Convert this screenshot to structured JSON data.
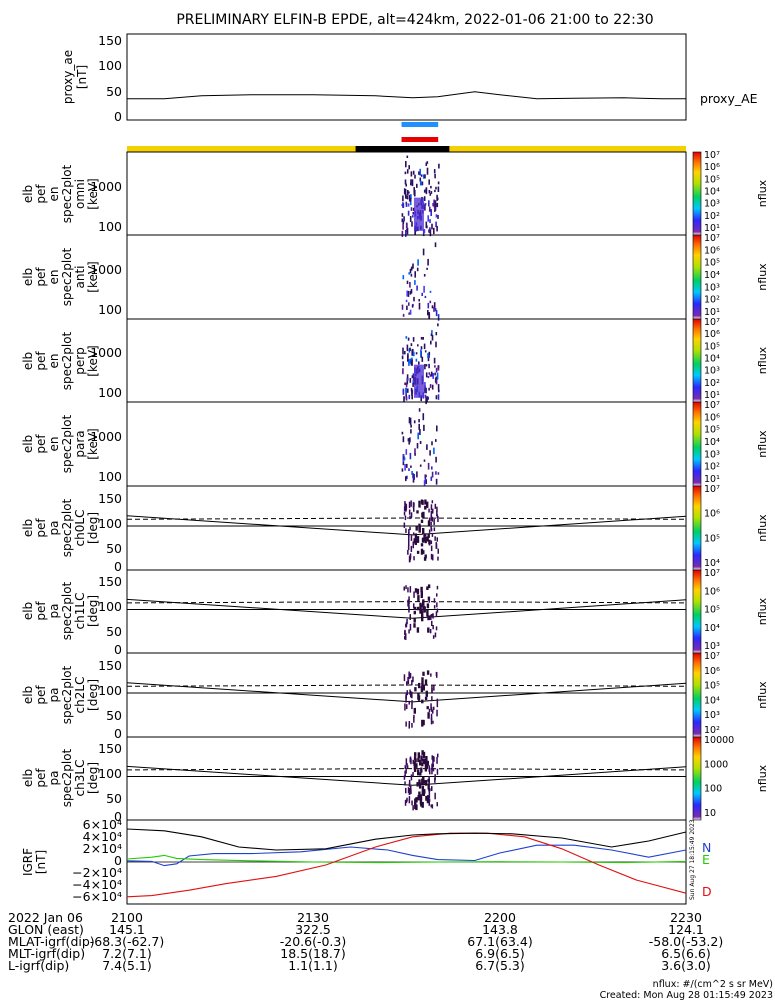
{
  "title": "PRELIMINARY ELFIN-B EPDE, alt=424km, 2022-01-06 21:00 to 22:30",
  "colors": {
    "orbit_bar_day": "#f4d000",
    "orbit_bar_night": "#000000",
    "science_zone_blue": "#1e90ff",
    "science_zone_red": "#e60000",
    "grf_north": "#1f3fd0",
    "grf_east": "#22cc00",
    "grf_down": "#e01010"
  },
  "panels": {
    "proxy_ae": {
      "ylabel": [
        "proxy_ae",
        "[nT]"
      ],
      "ytick_labels": [
        "150",
        "100",
        "50",
        "0"
      ],
      "yrange": [
        0,
        160
      ],
      "legend": "proxy_AE"
    },
    "energy": [
      {
        "ylabel": [
          "elb",
          "pef",
          "en",
          "spec2plot",
          "omni",
          "[keV]"
        ],
        "ytick_labels": [
          "1000",
          "100"
        ]
      },
      {
        "ylabel": [
          "elb",
          "pef",
          "en",
          "spec2plot",
          "anti",
          "[keV]"
        ],
        "ytick_labels": [
          "1000",
          "100"
        ]
      },
      {
        "ylabel": [
          "elb",
          "pef",
          "en",
          "spec2plot",
          "perp",
          "[keV]"
        ],
        "ytick_labels": [
          "1000",
          "100"
        ]
      },
      {
        "ylabel": [
          "elb",
          "pef",
          "en",
          "spec2plot",
          "para",
          "[keV]"
        ],
        "ytick_labels": [
          "1000",
          "100"
        ]
      }
    ],
    "pitch": [
      {
        "ylabel": [
          "elb",
          "pef",
          "pa",
          "spec2plot",
          "ch0LC",
          "[deg]"
        ],
        "ytick_labels": [
          "150",
          "100",
          "50",
          "0"
        ]
      },
      {
        "ylabel": [
          "elb",
          "pef",
          "pa",
          "spec2plot",
          "ch1LC",
          "[deg]"
        ],
        "ytick_labels": [
          "150",
          "100",
          "50",
          "0"
        ]
      },
      {
        "ylabel": [
          "elb",
          "pef",
          "pa",
          "spec2plot",
          "ch2LC",
          "[deg]"
        ],
        "ytick_labels": [
          "150",
          "100",
          "50",
          "0"
        ]
      },
      {
        "ylabel": [
          "elb",
          "pef",
          "pa",
          "spec2plot",
          "ch3LC",
          "[deg]"
        ],
        "ytick_labels": [
          "150",
          "100",
          "50",
          "0"
        ]
      }
    ],
    "grf": {
      "ylabel": [
        "IGRF",
        "[nT]"
      ],
      "ytick_labels": [
        "6×10⁴",
        "4×10⁴",
        "2×10⁴",
        "0",
        "−2×10⁴",
        "−4×10⁴",
        "−6×10⁴"
      ],
      "legend": [
        "N",
        "E",
        "D"
      ],
      "side_note": "Sun Aug 27 18:15:49 2023"
    }
  },
  "colorbars": [
    {
      "label": "nflux",
      "ticks": [
        "10⁷",
        "10⁶",
        "10⁵",
        "10⁴",
        "10³",
        "10²",
        "10¹"
      ]
    },
    {
      "label": "nflux",
      "ticks": [
        "10⁷",
        "10⁶",
        "10⁵",
        "10⁴",
        "10³",
        "10²",
        "10¹"
      ]
    },
    {
      "label": "nflux",
      "ticks": [
        "10⁷",
        "10⁶",
        "10⁵",
        "10⁴",
        "10³",
        "10²",
        "10¹"
      ]
    },
    {
      "label": "nflux",
      "ticks": [
        "10⁷",
        "10⁶",
        "10⁵",
        "10⁴",
        "10³",
        "10²",
        "10¹"
      ]
    },
    {
      "label": "nflux",
      "ticks": [
        "10⁷",
        "10⁶",
        "10⁵",
        "10⁴"
      ]
    },
    {
      "label": "nflux",
      "ticks": [
        "10⁷",
        "10⁶",
        "10⁵",
        "10⁴",
        "10³"
      ]
    },
    {
      "label": "nflux",
      "ticks": [
        "10⁷",
        "10⁶",
        "10⁵",
        "10⁴",
        "10³",
        "10²"
      ]
    },
    {
      "label": "nflux",
      "ticks": [
        "10000",
        "1000",
        "100",
        "10"
      ]
    }
  ],
  "x_axis": {
    "date_label": "2022 Jan 06",
    "time_labels": [
      "2100",
      "2130",
      "2200",
      "2230"
    ],
    "rows": [
      {
        "label": "GLON (east)",
        "values": [
          "145.1",
          "322.5",
          "143.8",
          "124.1"
        ]
      },
      {
        "label": "MLAT-igrf(dip)",
        "values": [
          "-68.3(-62.7)",
          "-20.6(-0.3)",
          "67.1(63.4)",
          "-58.0(-53.2)"
        ]
      },
      {
        "label": "MLT-igrf(dip)",
        "values": [
          "7.2(7.1)",
          "18.5(18.7)",
          "6.9(6.5)",
          "6.5(6.6)"
        ]
      },
      {
        "label": "L-igrf(dip)",
        "values": [
          "7.4(5.1)",
          "1.1(1.1)",
          "6.7(5.3)",
          "3.6(3.0)"
        ]
      }
    ]
  },
  "footer": {
    "units": "nflux: #/(cm^2 s sr MeV)",
    "created": "Created: Mon Aug 28 01:15:49 2023"
  },
  "chart_data": {
    "type": "line",
    "x_unit": "UT minutes after 21:00",
    "xlim": [
      0,
      90
    ],
    "proxy_ae": {
      "x": [
        0,
        6,
        12,
        20,
        30,
        40,
        46,
        50,
        56,
        60,
        66,
        72,
        80,
        86,
        90
      ],
      "values": [
        30,
        30,
        36,
        38,
        38,
        36,
        32,
        34,
        44,
        38,
        30,
        31,
        32,
        30,
        30
      ]
    },
    "science_zone_minutes": [
      44.2,
      50.1
    ],
    "night_segment_minutes": [
      36.8,
      51.9
    ],
    "lc_reference": {
      "x": [
        0,
        46,
        90
      ],
      "lc_deg": [
        113,
        70,
        112
      ],
      "alc_deg": [
        90,
        90,
        90
      ],
      "dashed_deg": [
        105,
        108,
        105
      ]
    },
    "igrf": {
      "ylim": [
        -68000,
        68000
      ],
      "series": [
        {
          "name": "N",
          "x": [
            0,
            4,
            6,
            8,
            10,
            14,
            20,
            28,
            36,
            42,
            46,
            50,
            56,
            60,
            66,
            72,
            78,
            84,
            90
          ],
          "values": [
            2000,
            1000,
            -6000,
            -3000,
            10000,
            14000,
            14000,
            17000,
            25000,
            20000,
            11000,
            4000,
            2500,
            15000,
            28000,
            28000,
            20000,
            8000,
            20000
          ]
        },
        {
          "name": "E",
          "x": [
            0,
            4,
            6,
            8,
            12,
            20,
            30,
            40,
            50,
            60,
            70,
            80,
            90
          ],
          "values": [
            5000,
            8000,
            11000,
            6000,
            4000,
            2000,
            0,
            -1000,
            0,
            500,
            0,
            -1000,
            1000
          ]
        },
        {
          "name": "D",
          "x": [
            0,
            4,
            10,
            16,
            24,
            32,
            40,
            46,
            52,
            58,
            64,
            70,
            76,
            82,
            90
          ],
          "values": [
            -58000,
            -56000,
            -47000,
            -36000,
            -24000,
            -5000,
            25000,
            42000,
            48000,
            48000,
            42000,
            22000,
            -5000,
            -30000,
            -52000
          ]
        },
        {
          "name": "Total",
          "x": [
            0,
            6,
            12,
            18,
            24,
            32,
            40,
            46,
            50,
            56,
            62,
            70,
            78,
            84,
            90
          ],
          "values": [
            55000,
            52000,
            42000,
            25000,
            20000,
            22000,
            38000,
            45000,
            47000,
            48000,
            47000,
            40000,
            25000,
            35000,
            50000
          ]
        }
      ]
    }
  }
}
